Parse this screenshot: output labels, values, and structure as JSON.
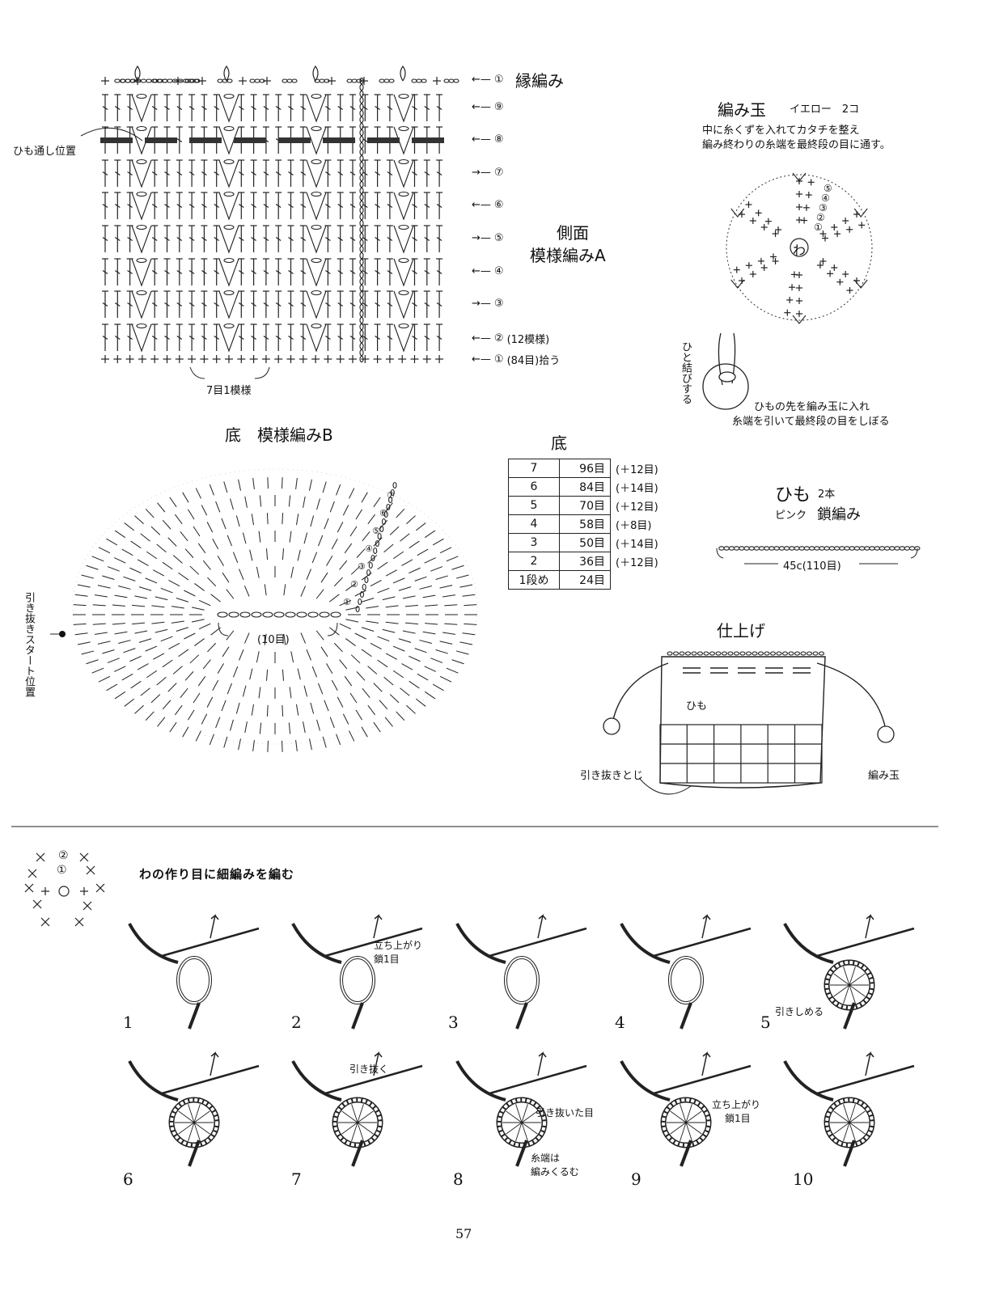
{
  "side_chart": {
    "title_border": "縁編み",
    "title_line1": "側面",
    "title_line2": "模様編みA",
    "cord_position_label": "ひも通し位置",
    "repeat_label": "7目1模様",
    "row_labels": [
      {
        "arrow": "←",
        "num": "①",
        "note": ""
      },
      {
        "arrow": "←",
        "num": "⑨",
        "note": ""
      },
      {
        "arrow": "←",
        "num": "⑧",
        "note": ""
      },
      {
        "arrow": "→",
        "num": "⑦",
        "note": ""
      },
      {
        "arrow": "←",
        "num": "⑥",
        "note": ""
      },
      {
        "arrow": "→",
        "num": "⑤",
        "note": ""
      },
      {
        "arrow": "←",
        "num": "④",
        "note": ""
      },
      {
        "arrow": "→",
        "num": "③",
        "note": ""
      },
      {
        "arrow": "←",
        "num": "②",
        "note": "(12模様)"
      },
      {
        "arrow": "←",
        "num": "①",
        "note": "(84目)拾う"
      }
    ]
  },
  "bobble": {
    "title": "編み玉",
    "color_count": "イエロー　2コ",
    "note_line1": "中に糸くずを入れてカタチを整え",
    "note_line2": "編み終わりの糸端を最終段の目に通す。",
    "center": "わ",
    "round_labels": [
      "⑤",
      "④",
      "③",
      "②",
      "①"
    ],
    "knot_label": "ひと結びする",
    "tie_note_line1": "ひもの先を編み玉に入れ",
    "tie_note_line2": "糸端を引いて最終段の目をしぼる"
  },
  "bottom_chart": {
    "title": "底　模様編みB",
    "center_label": "(10目)",
    "start_label": "引き抜きスタート位置",
    "round_labels": [
      "①",
      "②",
      "③",
      "④",
      "⑤",
      "⑥",
      "⑦"
    ]
  },
  "bottom_table": {
    "title": "底",
    "rows": [
      {
        "round": "7",
        "stitches": "96目",
        "increase": "(＋12目)"
      },
      {
        "round": "6",
        "stitches": "84目",
        "increase": "(＋14目)"
      },
      {
        "round": "5",
        "stitches": "70目",
        "increase": "(＋12目)"
      },
      {
        "round": "4",
        "stitches": "58目",
        "increase": "(＋8目)"
      },
      {
        "round": "3",
        "stitches": "50目",
        "increase": "(＋14目)"
      },
      {
        "round": "2",
        "stitches": "36目",
        "increase": "(＋12目)"
      },
      {
        "round": "1段め",
        "stitches": "24目",
        "increase": ""
      }
    ]
  },
  "cord": {
    "title": "ひも",
    "count": "2本",
    "color": "ピンク",
    "stitch": "鎖編み",
    "length": "45c(110目)"
  },
  "finish": {
    "title": "仕上げ",
    "cord_label": "ひも",
    "seam_label": "引き抜きとじ",
    "bobble_label": "編み玉"
  },
  "tutorial": {
    "heading": "わの作り目に細編みを編む",
    "small_chart_labels": [
      "②",
      "①"
    ],
    "steps": [
      {
        "num": "1",
        "note": ""
      },
      {
        "num": "2",
        "note": "立ち上がり\n鎖1目"
      },
      {
        "num": "3",
        "note": ""
      },
      {
        "num": "4",
        "note": ""
      },
      {
        "num": "5",
        "note": "引きしめる"
      },
      {
        "num": "6",
        "note": ""
      },
      {
        "num": "7",
        "note": "引き抜く"
      },
      {
        "num": "8",
        "note": "引き抜いた目"
      },
      {
        "num": "9",
        "note": "立ち上がり\n鎖1目"
      },
      {
        "num": "10",
        "note": ""
      }
    ],
    "step8_extra": "糸端は\n編みくるむ",
    "step2_label_a": "立ち上がり",
    "step2_label_b": "鎖1目",
    "step9_label_a": "立ち上がり",
    "step9_label_b": "鎖1目",
    "step8_extra_a": "糸端は",
    "step8_extra_b": "編みくるむ"
  },
  "page_number": "57"
}
